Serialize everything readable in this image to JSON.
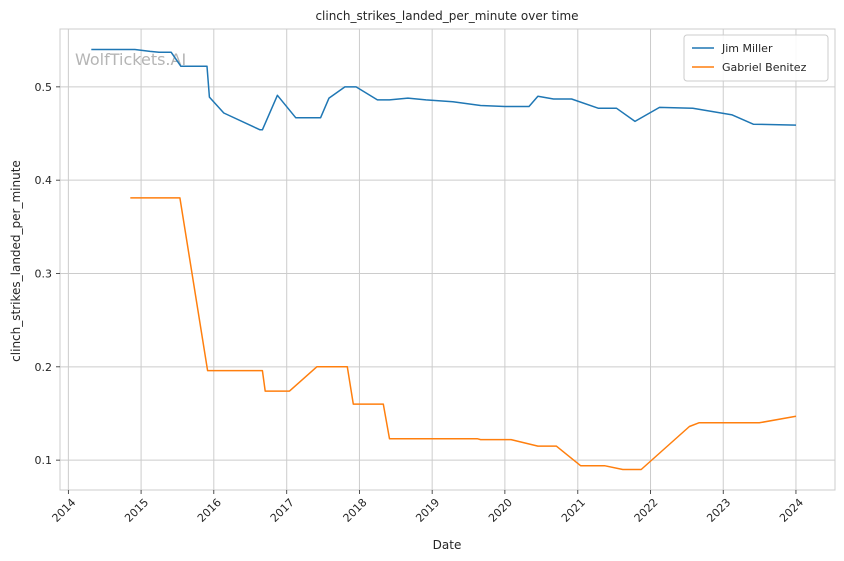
{
  "watermark": "WolfTickets.AI",
  "chart_data": {
    "type": "line",
    "title": "clinch_strikes_landed_per_minute over time",
    "xlabel": "Date",
    "ylabel": "clinch_strikes_landed_per_minute",
    "xlim": [
      "2013-11-20",
      "2024-07-15"
    ],
    "ylim": [
      0.068,
      0.562
    ],
    "x_ticks": [
      "2014",
      "2015",
      "2016",
      "2017",
      "2018",
      "2019",
      "2020",
      "2021",
      "2022",
      "2023",
      "2024"
    ],
    "y_ticks": [
      "0.1",
      "0.2",
      "0.3",
      "0.4",
      "0.5"
    ],
    "grid": true,
    "legend_position": "top-right",
    "series": [
      {
        "name": "Jim Miller",
        "color": "#1f77b4",
        "points": [
          [
            "2014-04-26",
            0.54
          ],
          [
            "2014-09-05",
            0.54
          ],
          [
            "2014-12-01",
            0.54
          ],
          [
            "2015-02-15",
            0.538
          ],
          [
            "2015-04-01",
            0.537
          ],
          [
            "2015-06-01",
            0.537
          ],
          [
            "2015-07-20",
            0.522
          ],
          [
            "2015-10-15",
            0.522
          ],
          [
            "2015-11-28",
            0.522
          ],
          [
            "2015-12-10",
            0.489
          ],
          [
            "2016-02-20",
            0.472
          ],
          [
            "2016-08-20",
            0.454
          ],
          [
            "2016-09-01",
            0.454
          ],
          [
            "2016-11-15",
            0.491
          ],
          [
            "2017-02-15",
            0.467
          ],
          [
            "2017-06-20",
            0.467
          ],
          [
            "2017-08-01",
            0.488
          ],
          [
            "2017-10-20",
            0.5
          ],
          [
            "2017-12-15",
            0.5
          ],
          [
            "2018-04-01",
            0.486
          ],
          [
            "2018-06-01",
            0.486
          ],
          [
            "2018-09-01",
            0.488
          ],
          [
            "2018-12-01",
            0.486
          ],
          [
            "2019-04-15",
            0.484
          ],
          [
            "2019-09-01",
            0.48
          ],
          [
            "2020-01-01",
            0.479
          ],
          [
            "2020-05-01",
            0.479
          ],
          [
            "2020-06-15",
            0.49
          ],
          [
            "2020-09-01",
            0.487
          ],
          [
            "2020-12-01",
            0.487
          ],
          [
            "2021-04-15",
            0.477
          ],
          [
            "2021-07-15",
            0.477
          ],
          [
            "2021-10-15",
            0.463
          ],
          [
            "2022-02-15",
            0.478
          ],
          [
            "2022-08-01",
            0.477
          ],
          [
            "2023-02-15",
            0.47
          ],
          [
            "2023-06-01",
            0.46
          ],
          [
            "2024-01-01",
            0.459
          ]
        ]
      },
      {
        "name": "Gabriel Benitez",
        "color": "#ff7f0e",
        "points": [
          [
            "2014-11-08",
            0.381
          ],
          [
            "2015-07-15",
            0.381
          ],
          [
            "2015-12-01",
            0.196
          ],
          [
            "2016-09-01",
            0.196
          ],
          [
            "2016-09-15",
            0.174
          ],
          [
            "2017-01-15",
            0.174
          ],
          [
            "2017-06-01",
            0.2
          ],
          [
            "2017-11-01",
            0.2
          ],
          [
            "2017-12-01",
            0.16
          ],
          [
            "2018-05-01",
            0.16
          ],
          [
            "2018-06-01",
            0.123
          ],
          [
            "2019-08-15",
            0.123
          ],
          [
            "2019-09-01",
            0.122
          ],
          [
            "2020-02-01",
            0.122
          ],
          [
            "2020-06-15",
            0.115
          ],
          [
            "2020-09-15",
            0.115
          ],
          [
            "2021-01-15",
            0.094
          ],
          [
            "2021-05-15",
            0.094
          ],
          [
            "2021-08-15",
            0.09
          ],
          [
            "2021-11-15",
            0.09
          ],
          [
            "2022-07-15",
            0.136
          ],
          [
            "2022-09-01",
            0.14
          ],
          [
            "2023-07-01",
            0.14
          ],
          [
            "2024-01-01",
            0.147
          ]
        ]
      }
    ]
  }
}
